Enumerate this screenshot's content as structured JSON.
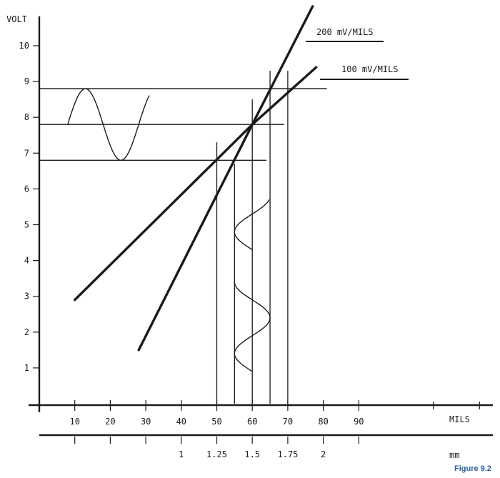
{
  "chart_data": {
    "type": "line",
    "ylabel": "VOLT",
    "xlabel": "MILS",
    "x2label": "mm",
    "y_ticks": [
      "1",
      "2",
      "3",
      "4",
      "5",
      "6",
      "7",
      "8",
      "9",
      "10"
    ],
    "x_ticks": [
      {
        "v": 10,
        "label": "10"
      },
      {
        "v": 20,
        "label": "20"
      },
      {
        "v": 30,
        "label": "30"
      },
      {
        "v": 40,
        "label": "40"
      },
      {
        "v": 50,
        "label": "50"
      },
      {
        "v": 60,
        "label": "60"
      },
      {
        "v": 70,
        "label": "70"
      },
      {
        "v": 80,
        "label": "80"
      },
      {
        "v": 90,
        "label": "90"
      }
    ],
    "x2_ticks": [
      {
        "v": 40,
        "label": "1"
      },
      {
        "v": 50,
        "label": "1.25"
      },
      {
        "v": 60,
        "label": "1.5"
      },
      {
        "v": 70,
        "label": "1.75"
      },
      {
        "v": 80,
        "label": "2"
      }
    ],
    "xlim": [
      0,
      125
    ],
    "ylim": [
      0,
      10.7
    ],
    "series": [
      {
        "name": "200 mV/MILS",
        "points": [
          [
            28,
            1.5
          ],
          [
            60,
            7.8
          ],
          [
            77,
            11.1
          ]
        ]
      },
      {
        "name": "100 mV/MILS",
        "points": [
          [
            10,
            2.9
          ],
          [
            60,
            7.8
          ],
          [
            78,
            9.4
          ]
        ]
      }
    ],
    "levels": [
      {
        "y": 8.8,
        "x_to": 81
      },
      {
        "y": 7.8,
        "x_to": 69
      },
      {
        "y": 6.8,
        "x_to": 64
      }
    ],
    "gap_markers": [
      {
        "x": 50,
        "y_top": 7.3
      },
      {
        "x": 55,
        "y_top": 6.7
      },
      {
        "x": 60,
        "y_top": 8.5
      },
      {
        "x": 65,
        "y_top": 9.3
      },
      {
        "x": 70,
        "y_top": 9.3
      }
    ],
    "input_waveforms": [
      {
        "axis": "x",
        "center": 60,
        "amplitude": 5,
        "y_from": 0.9,
        "y_to": 3.4
      },
      {
        "axis": "x",
        "center": 60,
        "amplitude": 5,
        "y_from": 4.3,
        "y_to": 5.7
      }
    ],
    "output_waveform": {
      "center": 7.8,
      "amplitude": 1.0,
      "x_from": 8,
      "x_to": 31
    },
    "figure_caption": "Figure 9.2",
    "caption_color": "#2e5f9e"
  }
}
